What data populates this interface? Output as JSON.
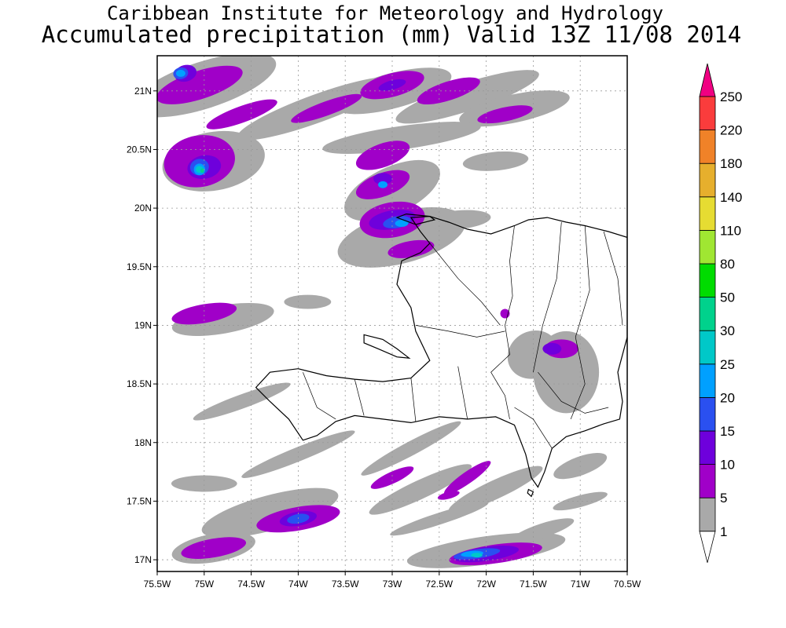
{
  "header": {
    "institute": "Caribbean Institute for Meteorology and Hydrology",
    "product": "Accumulated precipitation (mm) Valid 13Z 11/08 2014"
  },
  "map": {
    "lon_range": [
      -75.5,
      -70.5
    ],
    "lat_range": [
      16.9,
      21.3
    ],
    "grid": true,
    "x_ticks": [
      {
        "value": -75.5,
        "label": "75.5W"
      },
      {
        "value": -75,
        "label": "75W"
      },
      {
        "value": -74.5,
        "label": "74.5W"
      },
      {
        "value": -74,
        "label": "74W"
      },
      {
        "value": -73.5,
        "label": "73.5W"
      },
      {
        "value": -73,
        "label": "73W"
      },
      {
        "value": -72.5,
        "label": "72.5W"
      },
      {
        "value": -72,
        "label": "72W"
      },
      {
        "value": -71.5,
        "label": "71.5W"
      },
      {
        "value": -71,
        "label": "71W"
      },
      {
        "value": -70.5,
        "label": "70.5W"
      }
    ],
    "y_ticks": [
      {
        "value": 21,
        "label": "21N"
      },
      {
        "value": 20.5,
        "label": "20.5N"
      },
      {
        "value": 20,
        "label": "20N"
      },
      {
        "value": 19.5,
        "label": "19.5N"
      },
      {
        "value": 19,
        "label": "19N"
      },
      {
        "value": 18.5,
        "label": "18.5N"
      },
      {
        "value": 18,
        "label": "18N"
      },
      {
        "value": 17.5,
        "label": "17.5N"
      },
      {
        "value": 17,
        "label": "17N"
      }
    ],
    "land": [
      {
        "name": "Haiti-Dominican Republic",
        "coords": [
          [
            -72.8,
            19.92
          ],
          [
            -72.6,
            19.93
          ],
          [
            -72.4,
            19.88
          ],
          [
            -72.2,
            19.82
          ],
          [
            -71.95,
            19.78
          ],
          [
            -71.7,
            19.85
          ],
          [
            -71.55,
            19.9
          ],
          [
            -71.35,
            19.92
          ],
          [
            -71.15,
            19.88
          ],
          [
            -70.95,
            19.85
          ],
          [
            -70.7,
            19.8
          ],
          [
            -70.5,
            19.75
          ],
          [
            -70.5,
            18.9
          ],
          [
            -70.6,
            18.6
          ],
          [
            -70.55,
            18.35
          ],
          [
            -70.58,
            18.2
          ],
          [
            -70.75,
            18.16
          ],
          [
            -70.95,
            18.1
          ],
          [
            -71.15,
            18.05
          ],
          [
            -71.3,
            17.95
          ],
          [
            -71.38,
            17.75
          ],
          [
            -71.45,
            17.62
          ],
          [
            -71.52,
            17.7
          ],
          [
            -71.58,
            17.9
          ],
          [
            -71.7,
            18.15
          ],
          [
            -71.9,
            18.22
          ],
          [
            -72.2,
            18.2
          ],
          [
            -72.5,
            18.22
          ],
          [
            -72.8,
            18.17
          ],
          [
            -73.1,
            18.2
          ],
          [
            -73.4,
            18.23
          ],
          [
            -73.6,
            18.18
          ],
          [
            -73.8,
            18.06
          ],
          [
            -73.95,
            18.02
          ],
          [
            -74.1,
            18.2
          ],
          [
            -74.3,
            18.35
          ],
          [
            -74.45,
            18.47
          ],
          [
            -74.3,
            18.6
          ],
          [
            -74.0,
            18.63
          ],
          [
            -73.7,
            18.57
          ],
          [
            -73.4,
            18.54
          ],
          [
            -73.1,
            18.52
          ],
          [
            -72.8,
            18.55
          ],
          [
            -72.6,
            18.7
          ],
          [
            -72.75,
            18.95
          ],
          [
            -72.8,
            19.15
          ],
          [
            -72.95,
            19.35
          ],
          [
            -72.9,
            19.55
          ],
          [
            -72.7,
            19.62
          ],
          [
            -72.6,
            19.7
          ],
          [
            -72.7,
            19.8
          ],
          [
            -72.8,
            19.92
          ]
        ]
      },
      {
        "name": "Tortuga",
        "coords": [
          [
            -72.95,
            19.92
          ],
          [
            -72.85,
            19.95
          ],
          [
            -72.6,
            19.93
          ],
          [
            -72.55,
            19.9
          ],
          [
            -72.75,
            19.86
          ],
          [
            -72.95,
            19.92
          ]
        ]
      },
      {
        "name": "Gonave",
        "coords": [
          [
            -73.3,
            18.92
          ],
          [
            -73.1,
            18.88
          ],
          [
            -72.95,
            18.8
          ],
          [
            -72.82,
            18.72
          ],
          [
            -72.95,
            18.73
          ],
          [
            -73.15,
            18.8
          ],
          [
            -73.3,
            18.85
          ],
          [
            -73.3,
            18.92
          ]
        ]
      },
      {
        "name": "Beata",
        "coords": [
          [
            -71.55,
            17.6
          ],
          [
            -71.5,
            17.58
          ],
          [
            -71.52,
            17.54
          ],
          [
            -71.56,
            17.57
          ],
          [
            -71.55,
            17.6
          ]
        ]
      }
    ],
    "borders": [
      [
        [
          -71.7,
          19.85
        ],
        [
          -71.75,
          19.55
        ],
        [
          -71.72,
          19.25
        ],
        [
          -71.8,
          19.0
        ],
        [
          -71.75,
          18.75
        ],
        [
          -71.95,
          18.6
        ],
        [
          -71.8,
          18.4
        ],
        [
          -71.75,
          18.2
        ]
      ],
      [
        [
          -71.2,
          19.88
        ],
        [
          -71.25,
          19.4
        ],
        [
          -71.4,
          19.0
        ],
        [
          -71.5,
          18.6
        ]
      ],
      [
        [
          -70.95,
          19.85
        ],
        [
          -70.9,
          19.3
        ],
        [
          -71.05,
          18.9
        ],
        [
          -70.95,
          18.5
        ],
        [
          -71.1,
          18.2
        ]
      ],
      [
        [
          -72.6,
          19.7
        ],
        [
          -72.3,
          19.4
        ],
        [
          -72.05,
          19.2
        ],
        [
          -71.85,
          19.0
        ]
      ],
      [
        [
          -72.75,
          19.0
        ],
        [
          -72.4,
          18.95
        ],
        [
          -72.1,
          18.9
        ],
        [
          -71.8,
          18.95
        ]
      ],
      [
        [
          -73.95,
          18.6
        ],
        [
          -73.8,
          18.3
        ],
        [
          -73.6,
          18.2
        ]
      ],
      [
        [
          -73.4,
          18.54
        ],
        [
          -73.3,
          18.23
        ]
      ],
      [
        [
          -72.8,
          18.55
        ],
        [
          -72.75,
          18.18
        ]
      ],
      [
        [
          -72.3,
          18.65
        ],
        [
          -72.2,
          18.2
        ]
      ],
      [
        [
          -70.75,
          19.8
        ],
        [
          -70.6,
          19.4
        ],
        [
          -70.55,
          19.0
        ]
      ],
      [
        [
          -71.45,
          18.6
        ],
        [
          -71.2,
          18.35
        ],
        [
          -70.95,
          18.25
        ],
        [
          -70.7,
          18.3
        ]
      ],
      [
        [
          -71.3,
          17.95
        ],
        [
          -71.5,
          18.2
        ],
        [
          -71.7,
          18.3
        ]
      ]
    ],
    "precip_fields": [
      {
        "level": 1,
        "color": "#a9a9a9",
        "blobs": [
          [
            -75.0,
            21.05,
            0.8,
            0.2,
            -18
          ],
          [
            -73.8,
            20.85,
            0.9,
            0.12,
            -20
          ],
          [
            -73.0,
            21.0,
            0.65,
            0.15,
            -15
          ],
          [
            -72.2,
            20.95,
            0.8,
            0.12,
            -18
          ],
          [
            -71.7,
            20.85,
            0.6,
            0.12,
            -12
          ],
          [
            -72.9,
            20.6,
            0.85,
            0.1,
            -8
          ],
          [
            -71.9,
            20.4,
            0.35,
            0.08,
            -5
          ],
          [
            -74.9,
            20.4,
            0.55,
            0.25,
            -10
          ],
          [
            -73.0,
            20.15,
            0.55,
            0.2,
            -25
          ],
          [
            -72.9,
            19.75,
            0.7,
            0.22,
            -15
          ],
          [
            -72.3,
            19.9,
            0.35,
            0.08,
            -5
          ],
          [
            -74.8,
            19.05,
            0.55,
            0.12,
            -10
          ],
          [
            -73.9,
            19.2,
            0.25,
            0.06,
            0
          ],
          [
            -74.6,
            18.35,
            0.55,
            0.06,
            -20
          ],
          [
            -74.0,
            17.9,
            0.65,
            0.06,
            -22
          ],
          [
            -72.7,
            17.6,
            0.6,
            0.08,
            -25
          ],
          [
            -72.8,
            17.95,
            0.6,
            0.06,
            -28
          ],
          [
            -71.9,
            17.6,
            0.55,
            0.08,
            -25
          ],
          [
            -75.0,
            17.65,
            0.35,
            0.07,
            0
          ],
          [
            -74.3,
            17.4,
            0.75,
            0.15,
            -15
          ],
          [
            -74.9,
            17.1,
            0.45,
            0.12,
            -10
          ],
          [
            -72.0,
            17.08,
            0.85,
            0.12,
            -8
          ],
          [
            -71.0,
            17.8,
            0.3,
            0.08,
            -20
          ],
          [
            -71.4,
            17.25,
            0.35,
            0.06,
            -18
          ],
          [
            -71.5,
            18.75,
            0.28,
            0.2,
            -30
          ],
          [
            -71.15,
            18.6,
            0.35,
            0.35,
            0
          ],
          [
            -71.0,
            17.5,
            0.3,
            0.05,
            -15
          ],
          [
            -72.5,
            17.35,
            0.55,
            0.05,
            -18
          ]
        ]
      },
      {
        "level": 5,
        "color": "#a000c8",
        "blobs": [
          [
            -75.05,
            21.05,
            0.48,
            0.12,
            -18
          ],
          [
            -74.6,
            20.8,
            0.4,
            0.07,
            -20
          ],
          [
            -73.7,
            20.85,
            0.4,
            0.06,
            -20
          ],
          [
            -73.0,
            21.05,
            0.35,
            0.1,
            -15
          ],
          [
            -72.4,
            21.0,
            0.35,
            0.08,
            -18
          ],
          [
            -71.8,
            20.8,
            0.3,
            0.06,
            -12
          ],
          [
            -73.1,
            20.45,
            0.3,
            0.1,
            -20
          ],
          [
            -73.1,
            20.2,
            0.3,
            0.1,
            -20
          ],
          [
            -75.05,
            20.4,
            0.38,
            0.22,
            -10
          ],
          [
            -73.0,
            19.9,
            0.35,
            0.15,
            -10
          ],
          [
            -72.8,
            19.65,
            0.25,
            0.07,
            -10
          ],
          [
            -75.0,
            19.1,
            0.35,
            0.08,
            -10
          ],
          [
            -73.0,
            17.7,
            0.25,
            0.05,
            -25
          ],
          [
            -72.2,
            17.7,
            0.3,
            0.05,
            -35
          ],
          [
            -74.0,
            17.35,
            0.45,
            0.1,
            -10
          ],
          [
            -74.9,
            17.1,
            0.35,
            0.08,
            -10
          ],
          [
            -71.9,
            17.05,
            0.5,
            0.08,
            -8
          ],
          [
            -71.2,
            18.8,
            0.18,
            0.08,
            0
          ],
          [
            -71.8,
            19.1,
            0.05,
            0.04,
            0
          ],
          [
            -72.4,
            17.55,
            0.12,
            0.03,
            -15
          ]
        ]
      },
      {
        "level": 10,
        "color": "#6e00dc",
        "blobs": [
          [
            -75.2,
            21.15,
            0.12,
            0.07,
            -15
          ],
          [
            -75.0,
            20.35,
            0.18,
            0.1,
            -10
          ],
          [
            -73.1,
            20.25,
            0.1,
            0.05,
            0
          ],
          [
            -73.0,
            19.9,
            0.25,
            0.08,
            -10
          ],
          [
            -74.0,
            17.35,
            0.2,
            0.06,
            -10
          ],
          [
            -72.0,
            17.05,
            0.35,
            0.06,
            -8
          ],
          [
            -71.3,
            18.8,
            0.1,
            0.05,
            0
          ],
          [
            -73.0,
            21.05,
            0.15,
            0.04,
            -15
          ]
        ]
      },
      {
        "level": 15,
        "color": "#2a50f0",
        "blobs": [
          [
            -75.25,
            21.15,
            0.08,
            0.05,
            -10
          ],
          [
            -75.05,
            20.35,
            0.1,
            0.07,
            -10
          ],
          [
            -72.95,
            19.88,
            0.15,
            0.05,
            -10
          ],
          [
            -74.0,
            17.35,
            0.12,
            0.04,
            -10
          ],
          [
            -72.1,
            17.05,
            0.25,
            0.04,
            -8
          ]
        ]
      },
      {
        "level": 20,
        "color": "#00a0ff",
        "blobs": [
          [
            -75.25,
            21.15,
            0.05,
            0.03,
            0
          ],
          [
            -75.05,
            20.33,
            0.06,
            0.05,
            0
          ],
          [
            -72.9,
            19.87,
            0.07,
            0.03,
            0
          ],
          [
            -73.1,
            20.2,
            0.05,
            0.03,
            0
          ],
          [
            -72.15,
            17.05,
            0.12,
            0.025,
            -5
          ]
        ]
      },
      {
        "level": 25,
        "color": "#00c8c8",
        "blobs": [
          [
            -75.05,
            20.33,
            0.04,
            0.03,
            0
          ],
          [
            -72.1,
            17.04,
            0.06,
            0.02,
            0
          ]
        ]
      },
      {
        "level": 30,
        "color": "#00d28c",
        "blobs": [
          [
            -75.02,
            20.32,
            0.02,
            0.02,
            0
          ]
        ]
      }
    ]
  },
  "legend": {
    "levels": [
      "1",
      "5",
      "10",
      "15",
      "20",
      "25",
      "30",
      "50",
      "80",
      "110",
      "140",
      "180",
      "220",
      "250"
    ],
    "colors": [
      "#ffffff",
      "#a9a9a9",
      "#a000c8",
      "#6e00dc",
      "#2a50f0",
      "#00a0ff",
      "#00c8c8",
      "#00d28c",
      "#00dc00",
      "#a0e632",
      "#e6dc32",
      "#e6af2d",
      "#f08228",
      "#fa3c3c",
      "#f00082"
    ]
  }
}
